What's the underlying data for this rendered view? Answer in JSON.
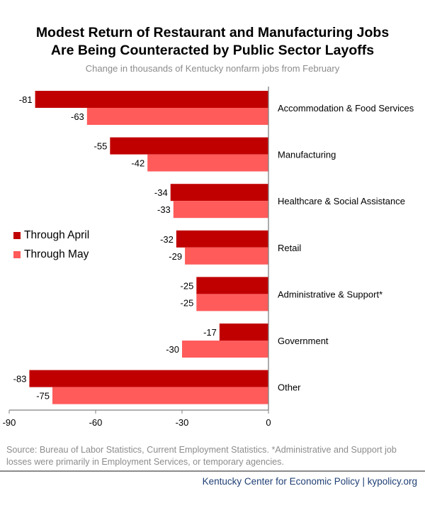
{
  "title_line1": "Modest Return of Restaurant and Manufacturing Jobs",
  "title_line2": "Are Being Counteracted by Public Sector Layoffs",
  "subtitle": "Change in thousands of Kentucky nonfarm jobs from February",
  "source_note": "Source: Bureau of Labor Statistics, Current Employment Statistics. *Administrative and Support job losses were primarily in Employment Services, or temporary agencies.",
  "footer": "Kentucky Center for Economic Policy | kypolicy.org",
  "colors": {
    "april": "#c00000",
    "may": "#ff5b5b",
    "axis": "#808080",
    "footer_text": "#1f3f74"
  },
  "chart_data": {
    "type": "bar",
    "orientation": "horizontal",
    "categories": [
      "Accommodation & Food Services",
      "Manufacturing",
      "Healthcare & Social Assistance",
      "Retail",
      "Administrative & Support*",
      "Government",
      "Other"
    ],
    "series": [
      {
        "name": "Through April",
        "values": [
          -81,
          -55,
          -34,
          -32,
          -25,
          -17,
          -83
        ]
      },
      {
        "name": "Through May",
        "values": [
          -63,
          -42,
          -33,
          -29,
          -25,
          -30,
          -75
        ]
      }
    ],
    "x_ticks": [
      "-90",
      "-60",
      "-30",
      "0"
    ],
    "xlim": [
      -90,
      0
    ],
    "grid": false,
    "legend_position": "left"
  }
}
